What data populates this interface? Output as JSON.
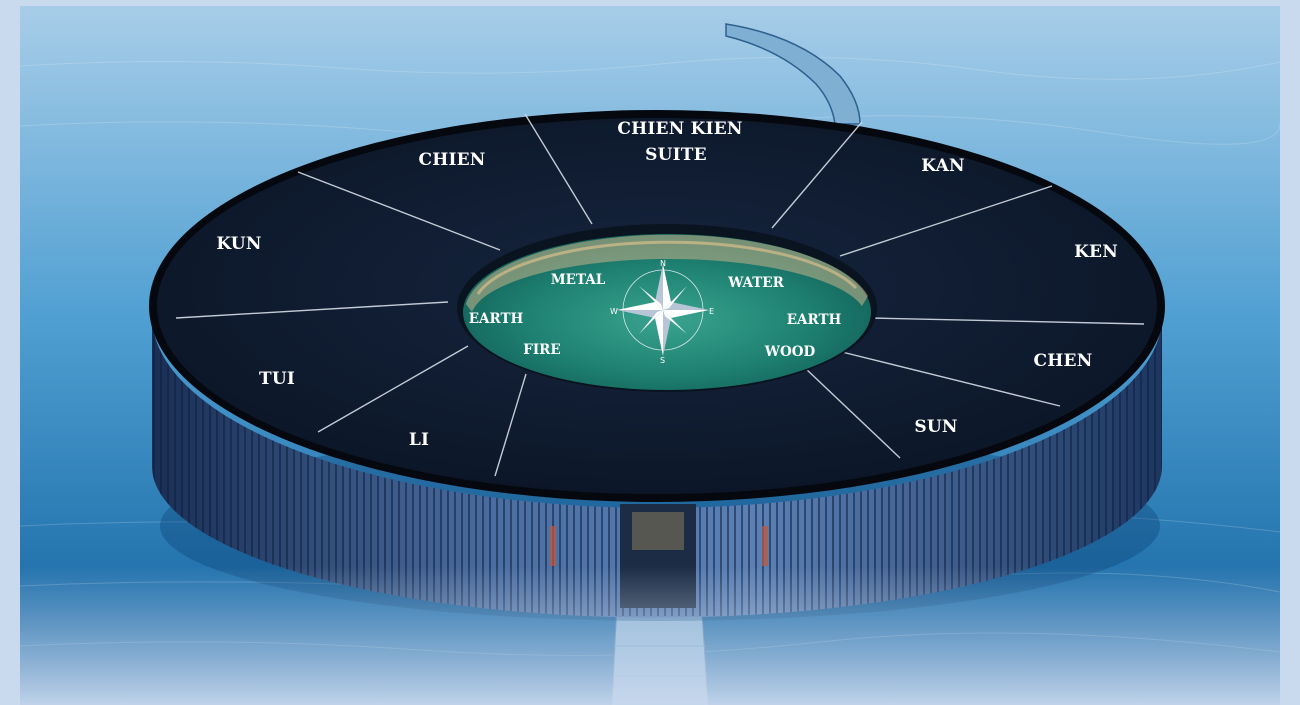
{
  "colors": {
    "frame": "#c9d9ee",
    "water_top": "#a9cfe8",
    "water_bottom": "#0f5f9e",
    "roof": "#0e1a2e",
    "courtyard": "#1f8a78",
    "label": "#ffffff"
  },
  "suite_label": {
    "line1": "CHIEN KIEN",
    "line2": "SUITE"
  },
  "ring_sections": [
    {
      "label": "CHIEN"
    },
    {
      "label": "KAN"
    },
    {
      "label": "KUN"
    },
    {
      "label": "KEN"
    },
    {
      "label": "TUI"
    },
    {
      "label": "CHEN"
    },
    {
      "label": "LI"
    },
    {
      "label": "SUN"
    }
  ],
  "elements": [
    {
      "label": "METAL"
    },
    {
      "label": "WATER"
    },
    {
      "label": "EARTH"
    },
    {
      "label": "EARTH"
    },
    {
      "label": "FIRE"
    },
    {
      "label": "WOOD"
    }
  ],
  "compass": {
    "icon": "compass-rose-icon",
    "north": "N",
    "south": "S",
    "east": "E",
    "west": "W"
  }
}
